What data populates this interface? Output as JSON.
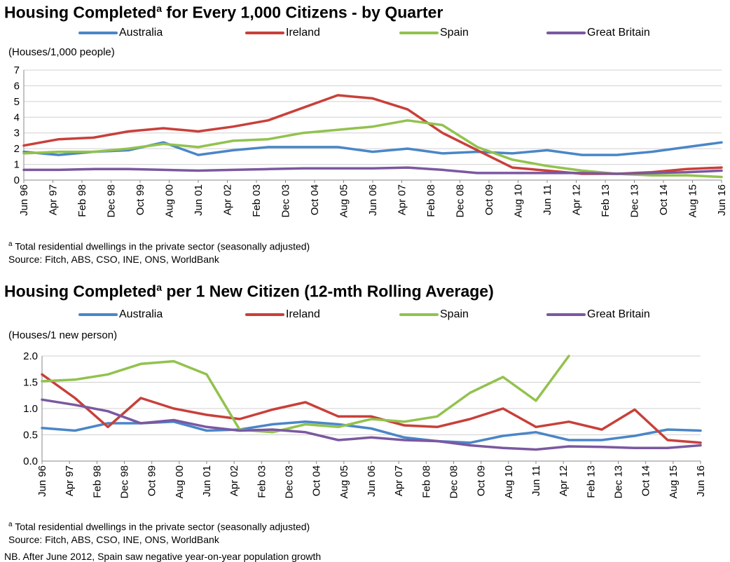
{
  "colors": {
    "Australia": "#4a86c8",
    "Ireland": "#c8403a",
    "Spain": "#92c24e",
    "Great Britain": "#7b58a0"
  },
  "charts_meta": [
    {
      "title_main": "Housing Completed",
      "title_sup": "a",
      "title_rest": " for Every 1,000 Citizens - by Quarter",
      "unit": "(Houses/1,000 people)",
      "footnote_sup": "a",
      "footnote": " Total residential dwellings in the private sector (seasonally adjusted)",
      "source": "Source: Fitch, ABS, CSO, INE, ONS, WorldBank"
    },
    {
      "title_main": "Housing Completed",
      "title_sup": "a",
      "title_rest": " per 1 New Citizen (12-mth Rolling Average)",
      "unit": "(Houses/1 new person)",
      "footnote_sup": "a",
      "footnote": " Total residential dwellings in the private sector (seasonally adjusted)",
      "source": "Source: Fitch, ABS, CSO, INE, ONS, WorldBank"
    }
  ],
  "nb": "NB. After June 2012, Spain saw negative year-on-year population growth",
  "chart_data": [
    {
      "type": "line",
      "title": "Housing Completedᵃ for Every 1,000 Citizens - by Quarter",
      "ylabel": "(Houses/1,000 people)",
      "ylim": [
        0,
        7
      ],
      "yticks": [
        "0",
        "1",
        "2",
        "3",
        "4",
        "5",
        "6",
        "7"
      ],
      "xlim": [
        "Jun 96",
        "Jun 16"
      ],
      "x_tick_labels": [
        "Jun 96",
        "Apr 97",
        "Feb 98",
        "Dec 98",
        "Oct 99",
        "Aug 00",
        "Jun 01",
        "Apr 02",
        "Feb 03",
        "Dec 03",
        "Oct 04",
        "Aug 05",
        "Jun 06",
        "Apr 07",
        "Feb 08",
        "Dec 08",
        "Oct 09",
        "Aug 10",
        "Jun 11",
        "Apr 12",
        "Feb 13",
        "Dec 13",
        "Oct 14",
        "Aug 15",
        "Jun 16"
      ],
      "grid": true,
      "legend": "top",
      "series": [
        {
          "name": "Australia",
          "x": [
            "Jun 96",
            "Jun 97",
            "Jun 98",
            "Jun 99",
            "Jun 00",
            "Jun 01",
            "Jun 02",
            "Jun 03",
            "Jun 04",
            "Jun 05",
            "Jun 06",
            "Jun 07",
            "Jun 08",
            "Jun 09",
            "Jun 10",
            "Jun 11",
            "Jun 12",
            "Jun 13",
            "Jun 14",
            "Jun 15",
            "Jun 16"
          ],
          "values": [
            1.8,
            1.6,
            1.8,
            1.9,
            2.4,
            1.6,
            1.9,
            2.1,
            2.1,
            2.1,
            1.8,
            2.0,
            1.7,
            1.8,
            1.7,
            1.9,
            1.6,
            1.6,
            1.8,
            2.1,
            2.4
          ]
        },
        {
          "name": "Ireland",
          "x": [
            "Jun 96",
            "Jun 97",
            "Jun 98",
            "Jun 99",
            "Jun 00",
            "Jun 01",
            "Jun 02",
            "Jun 03",
            "Jun 04",
            "Jun 05",
            "Jun 06",
            "Jun 07",
            "Jun 08",
            "Jun 09",
            "Jun 10",
            "Jun 11",
            "Jun 12",
            "Jun 13",
            "Jun 14",
            "Jun 15",
            "Jun 16"
          ],
          "values": [
            2.2,
            2.6,
            2.7,
            3.1,
            3.3,
            3.1,
            3.4,
            3.8,
            4.6,
            5.4,
            5.2,
            4.5,
            3.0,
            1.9,
            0.8,
            0.6,
            0.4,
            0.4,
            0.5,
            0.7,
            0.8
          ]
        },
        {
          "name": "Spain",
          "x": [
            "Jun 96",
            "Jun 97",
            "Jun 98",
            "Jun 99",
            "Jun 00",
            "Jun 01",
            "Jun 02",
            "Jun 03",
            "Jun 04",
            "Jun 05",
            "Jun 06",
            "Jun 07",
            "Jun 08",
            "Jun 09",
            "Jun 10",
            "Jun 11",
            "Jun 12",
            "Jun 13",
            "Jun 14",
            "Jun 15",
            "Jun 16"
          ],
          "values": [
            1.7,
            1.8,
            1.8,
            2.0,
            2.3,
            2.1,
            2.5,
            2.6,
            3.0,
            3.2,
            3.4,
            3.8,
            3.5,
            2.1,
            1.3,
            0.9,
            0.6,
            0.4,
            0.3,
            0.3,
            0.2
          ]
        },
        {
          "name": "Great Britain",
          "x": [
            "Jun 96",
            "Jun 97",
            "Jun 98",
            "Jun 99",
            "Jun 00",
            "Jun 01",
            "Jun 02",
            "Jun 03",
            "Jun 04",
            "Jun 05",
            "Jun 06",
            "Jun 07",
            "Jun 08",
            "Jun 09",
            "Jun 10",
            "Jun 11",
            "Jun 12",
            "Jun 13",
            "Jun 14",
            "Jun 15",
            "Jun 16"
          ],
          "values": [
            0.65,
            0.65,
            0.7,
            0.7,
            0.65,
            0.6,
            0.65,
            0.7,
            0.75,
            0.75,
            0.75,
            0.8,
            0.65,
            0.45,
            0.45,
            0.45,
            0.45,
            0.4,
            0.45,
            0.5,
            0.6
          ]
        }
      ]
    },
    {
      "type": "line",
      "title": "Housing Completedᵃ per 1 New Citizen (12-mth Rolling Average)",
      "ylabel": "(Houses/1 new person)",
      "ylim": [
        0,
        2
      ],
      "yticks": [
        "0.0",
        "0.5",
        "1.0",
        "1.5",
        "2.0"
      ],
      "xlim": [
        "Jun 96",
        "Jun 16"
      ],
      "x_tick_labels": [
        "Jun 96",
        "Apr 97",
        "Feb 98",
        "Dec 98",
        "Oct 99",
        "Aug 00",
        "Jun 01",
        "Apr 02",
        "Feb 03",
        "Dec 03",
        "Oct 04",
        "Aug 05",
        "Jun 06",
        "Apr 07",
        "Feb 08",
        "Dec 08",
        "Oct 09",
        "Aug 10",
        "Jun 11",
        "Apr 12",
        "Feb 13",
        "Dec 13",
        "Oct 14",
        "Aug 15",
        "Jun 16"
      ],
      "grid": true,
      "legend": "top",
      "series": [
        {
          "name": "Australia",
          "x": [
            "Jun 96",
            "Jun 97",
            "Jun 98",
            "Jun 99",
            "Jun 00",
            "Jun 01",
            "Jun 02",
            "Jun 03",
            "Jun 04",
            "Jun 05",
            "Jun 06",
            "Jun 07",
            "Jun 08",
            "Jun 09",
            "Jun 10",
            "Jun 11",
            "Jun 12",
            "Jun 13",
            "Jun 14",
            "Jun 15",
            "Jun 16"
          ],
          "values": [
            0.63,
            0.58,
            0.72,
            0.72,
            0.75,
            0.58,
            0.6,
            0.7,
            0.75,
            0.7,
            0.62,
            0.45,
            0.38,
            0.35,
            0.48,
            0.55,
            0.4,
            0.4,
            0.48,
            0.6,
            0.58
          ]
        },
        {
          "name": "Ireland",
          "x": [
            "Jun 96",
            "Jun 97",
            "Jun 98",
            "Jun 99",
            "Jun 00",
            "Jun 01",
            "Jun 02",
            "Jun 03",
            "Jun 04",
            "Jun 05",
            "Jun 06",
            "Jun 07",
            "Jun 08",
            "Jun 09",
            "Jun 10",
            "Jun 11",
            "Jun 12",
            "Jun 13",
            "Jun 14",
            "Jun 15",
            "Jun 16"
          ],
          "values": [
            1.65,
            1.2,
            0.65,
            1.2,
            1.0,
            0.88,
            0.8,
            0.98,
            1.12,
            0.85,
            0.85,
            0.68,
            0.65,
            0.8,
            1.0,
            0.65,
            0.75,
            0.6,
            0.98,
            0.4,
            0.35
          ]
        },
        {
          "name": "Spain",
          "x": [
            "Jun 96",
            "Jun 97",
            "Jun 98",
            "Jun 99",
            "Jun 00",
            "Jun 01",
            "Jun 02",
            "Jun 03",
            "Jun 04",
            "Jun 05",
            "Jun 06",
            "Jun 07",
            "Jun 08",
            "Jun 09",
            "Jun 10",
            "Jun 11",
            "Jun 12"
          ],
          "values": [
            1.52,
            1.55,
            1.65,
            1.85,
            1.9,
            1.65,
            0.6,
            0.55,
            0.7,
            0.65,
            0.8,
            0.75,
            0.85,
            1.3,
            1.6,
            1.15,
            2.0
          ]
        },
        {
          "name": "Great Britain",
          "x": [
            "Jun 96",
            "Jun 97",
            "Jun 98",
            "Jun 99",
            "Jun 00",
            "Jun 01",
            "Jun 02",
            "Jun 03",
            "Jun 04",
            "Jun 05",
            "Jun 06",
            "Jun 07",
            "Jun 08",
            "Jun 09",
            "Jun 10",
            "Jun 11",
            "Jun 12",
            "Jun 13",
            "Jun 14",
            "Jun 15",
            "Jun 16"
          ],
          "values": [
            1.17,
            1.07,
            0.95,
            0.72,
            0.78,
            0.65,
            0.58,
            0.6,
            0.55,
            0.4,
            0.45,
            0.4,
            0.38,
            0.3,
            0.25,
            0.22,
            0.28,
            0.27,
            0.25,
            0.25,
            0.3
          ]
        }
      ]
    }
  ]
}
